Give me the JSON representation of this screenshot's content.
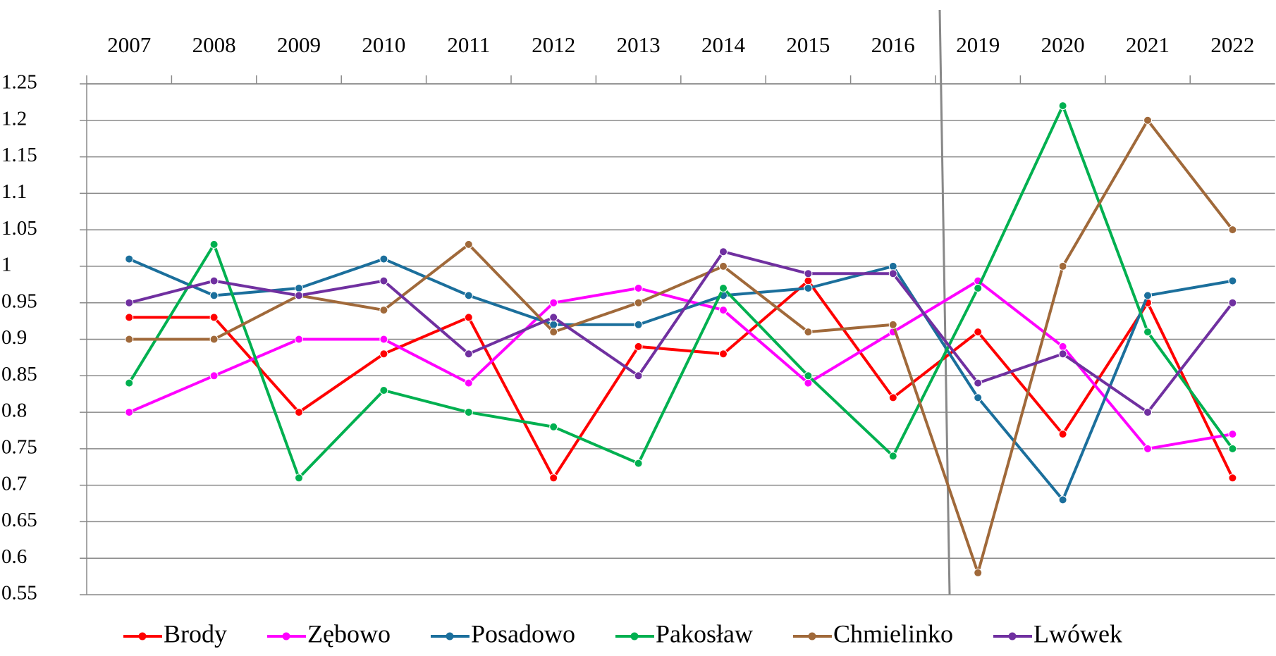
{
  "chart_data": {
    "type": "line",
    "categories": [
      "2007",
      "2008",
      "2009",
      "2010",
      "2011",
      "2012",
      "2013",
      "2014",
      "2015",
      "2016",
      "2019",
      "2020",
      "2021",
      "2022"
    ],
    "series": [
      {
        "name": "Brody",
        "color": "#ff0000",
        "values": [
          0.93,
          0.93,
          0.8,
          0.88,
          0.93,
          0.71,
          0.89,
          0.88,
          0.98,
          0.82,
          0.91,
          0.77,
          0.95,
          0.71
        ]
      },
      {
        "name": "Zębowo",
        "color": "#ff00ff",
        "values": [
          0.8,
          0.85,
          0.9,
          0.9,
          0.84,
          0.95,
          0.97,
          0.94,
          0.84,
          0.91,
          0.98,
          0.89,
          0.75,
          0.77
        ]
      },
      {
        "name": "Posadowo",
        "color": "#1b6f9c",
        "values": [
          1.01,
          0.96,
          0.97,
          1.01,
          0.96,
          0.92,
          0.92,
          0.96,
          0.97,
          1.0,
          0.82,
          0.68,
          0.96,
          0.98
        ]
      },
      {
        "name": "Pakosław",
        "color": "#00b050",
        "values": [
          0.84,
          1.03,
          0.71,
          0.83,
          0.8,
          0.78,
          0.73,
          0.97,
          0.85,
          0.74,
          0.97,
          1.22,
          0.91,
          0.75
        ]
      },
      {
        "name": "Chmielinko",
        "color": "#a0693a",
        "values": [
          0.9,
          0.9,
          0.96,
          0.94,
          1.03,
          0.91,
          0.95,
          1.0,
          0.91,
          0.92,
          0.58,
          1.0,
          1.2,
          1.05
        ]
      },
      {
        "name": "Lwówek",
        "color": "#7030a0",
        "values": [
          0.95,
          0.98,
          0.96,
          0.98,
          0.88,
          0.93,
          0.85,
          1.02,
          0.99,
          0.99,
          0.84,
          0.88,
          0.8,
          0.95
        ]
      }
    ],
    "ylim": [
      0.55,
      1.25
    ],
    "yticks": [
      0.55,
      0.6,
      0.65,
      0.7,
      0.75,
      0.8,
      0.85,
      0.9,
      0.95,
      1,
      1.05,
      1.1,
      1.15,
      1.2,
      1.25
    ],
    "grid": true,
    "legend": "bottom"
  }
}
